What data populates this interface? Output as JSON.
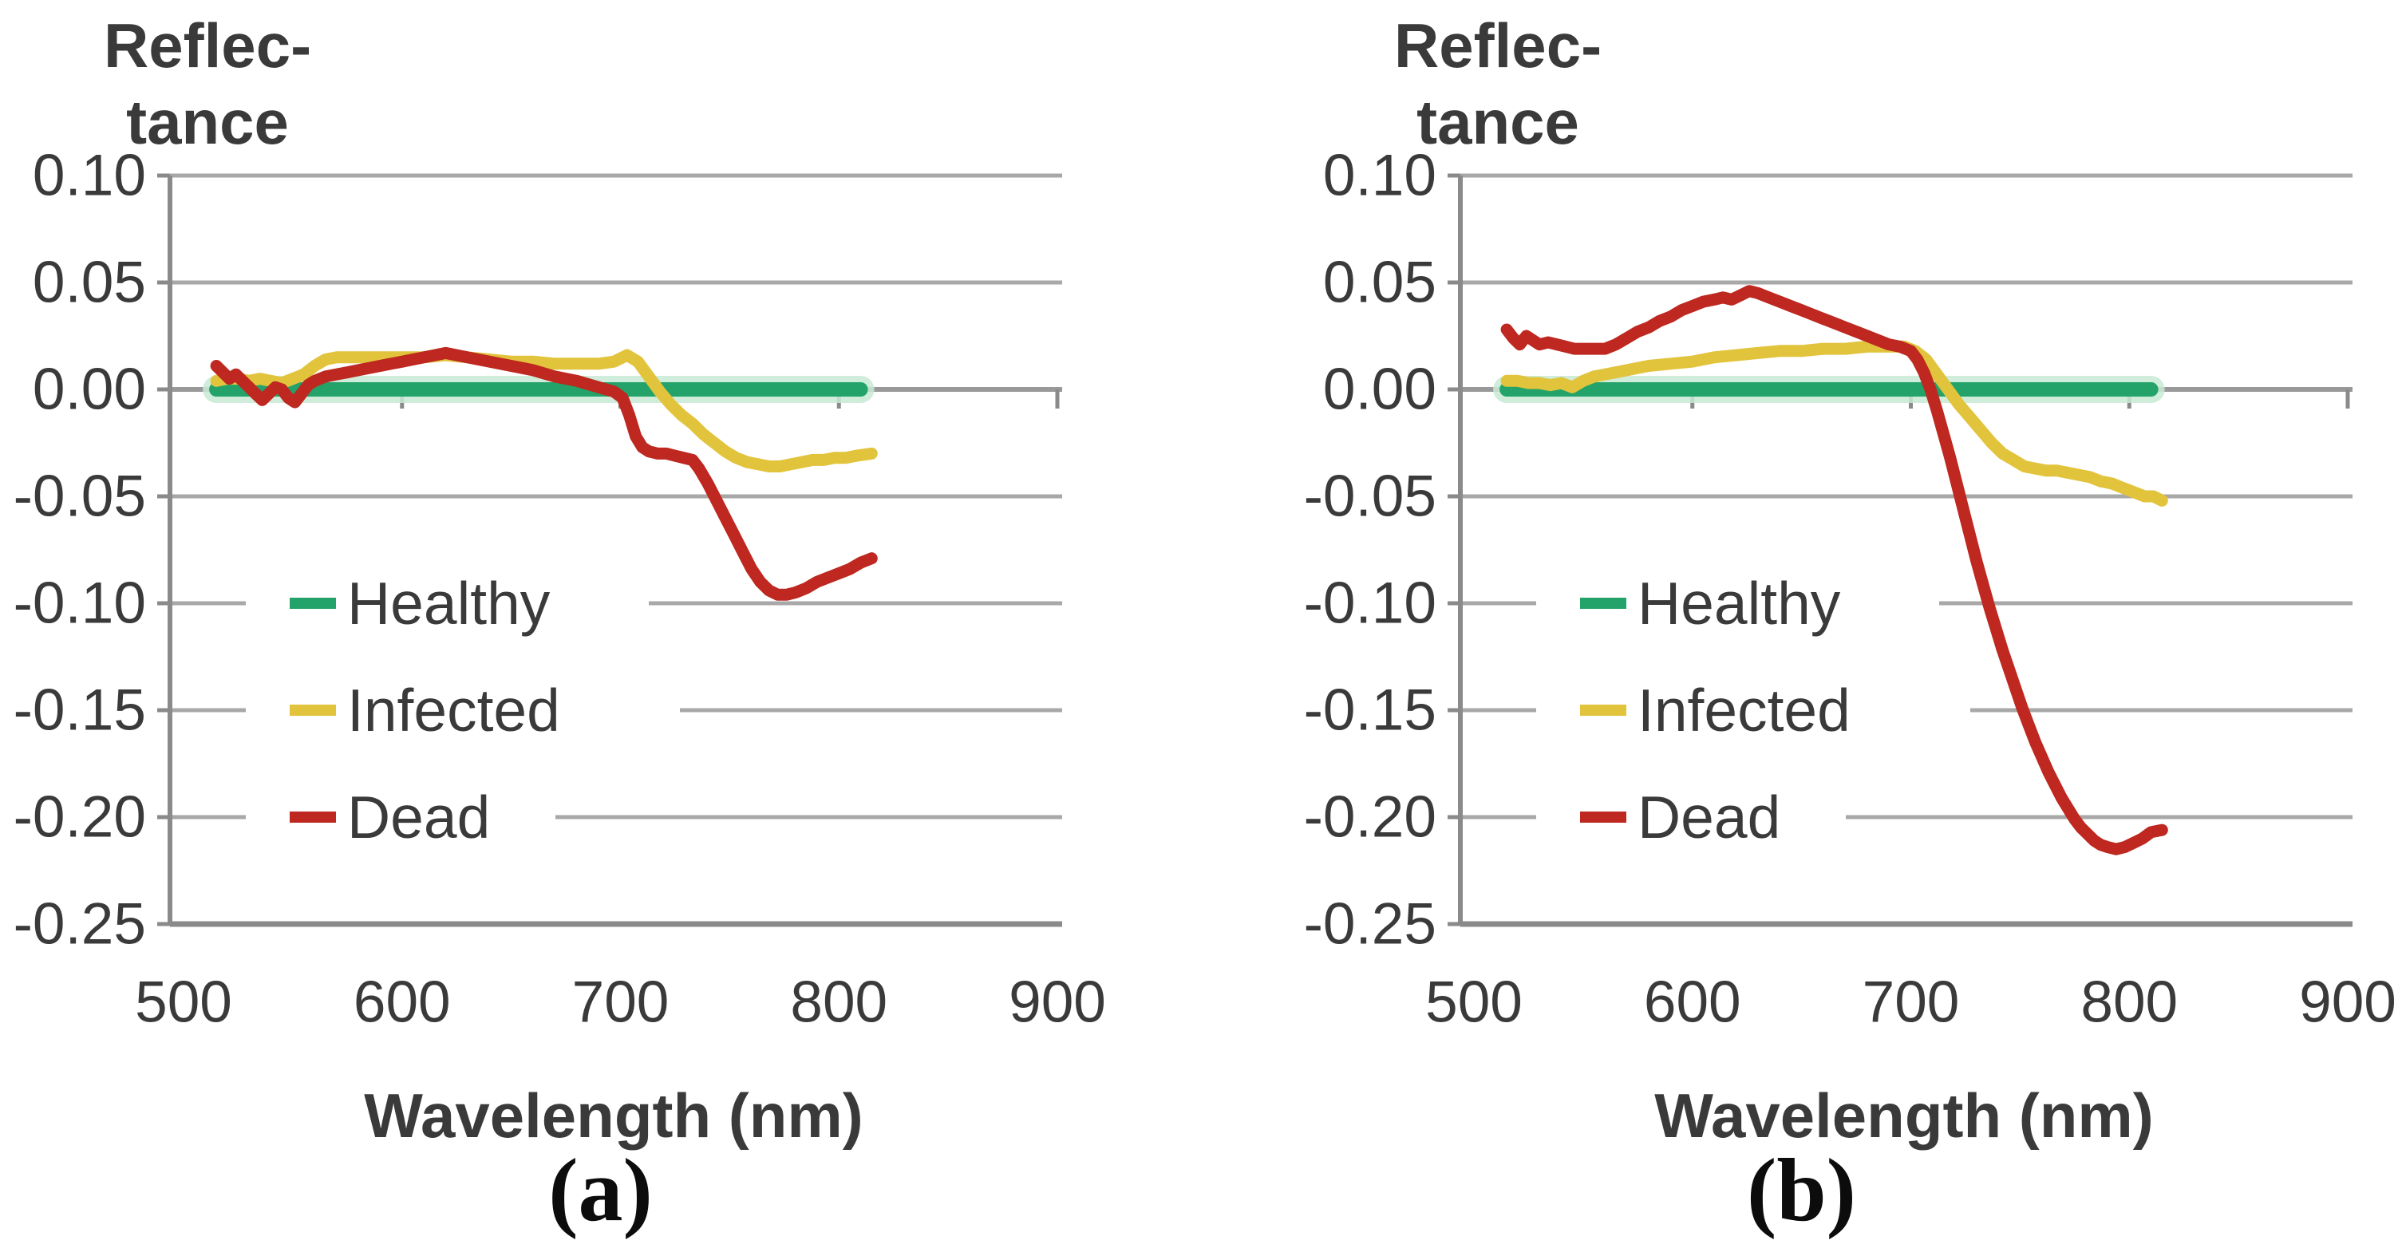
{
  "figure_captions": {
    "a": "(a)",
    "b": "(b)"
  },
  "colors": {
    "healthy": "#23A36A",
    "healthy_halo": "#C8EAD6",
    "infected": "#E2C43C",
    "dead": "#BE2820",
    "gridline": "#A8A8A8",
    "axis": "#8A8A8A",
    "zero_line": "#999999",
    "label_text": "#3A3A3A",
    "legend_text": "#333333"
  },
  "chart_data": [
    {
      "id": "a",
      "type": "line",
      "caption": "(a)",
      "ylabel_line1": "Reflec-",
      "ylabel_line2": "tance",
      "xlabel": "Wavelength (nm)",
      "x_ticks": [
        "500",
        "600",
        "700",
        "800",
        "900"
      ],
      "y_ticks": [
        "0.10",
        "0.05",
        "0.00",
        "-0.05",
        "-0.10",
        "-0.15",
        "-0.20",
        "-0.25"
      ],
      "xlim": [
        500,
        900
      ],
      "ylim": [
        -0.25,
        0.1
      ],
      "grid": "horizontal",
      "legend": {
        "position": "inside-left",
        "entries": [
          {
            "label": "Healthy",
            "color": "#23A36A",
            "row_value": -0.1
          },
          {
            "label": "Infected",
            "color": "#E2C43C",
            "row_value": -0.15
          },
          {
            "label": "Dead",
            "color": "#BE2820",
            "row_value": -0.2
          }
        ]
      },
      "series": [
        {
          "name": "Healthy",
          "color": "#23A36A",
          "points": [
            [
              515,
              0
            ],
            [
              810,
              0
            ]
          ]
        },
        {
          "name": "Infected",
          "color": "#E2C43C",
          "points": [
            [
              515,
              0.004
            ],
            [
              520,
              0.005
            ],
            [
              525,
              0.005
            ],
            [
              530,
              0.004
            ],
            [
              535,
              0.005
            ],
            [
              540,
              0.004
            ],
            [
              545,
              0.003
            ],
            [
              550,
              0.005
            ],
            [
              555,
              0.007
            ],
            [
              560,
              0.011
            ],
            [
              565,
              0.014
            ],
            [
              570,
              0.015
            ],
            [
              580,
              0.015
            ],
            [
              590,
              0.015
            ],
            [
              600,
              0.015
            ],
            [
              610,
              0.015
            ],
            [
              620,
              0.016
            ],
            [
              630,
              0.015
            ],
            [
              640,
              0.014
            ],
            [
              650,
              0.013
            ],
            [
              660,
              0.013
            ],
            [
              670,
              0.012
            ],
            [
              680,
              0.012
            ],
            [
              690,
              0.012
            ],
            [
              697,
              0.013
            ],
            [
              703,
              0.016
            ],
            [
              708,
              0.013
            ],
            [
              713,
              0.006
            ],
            [
              718,
              -0.001
            ],
            [
              723,
              -0.007
            ],
            [
              728,
              -0.012
            ],
            [
              733,
              -0.016
            ],
            [
              738,
              -0.021
            ],
            [
              743,
              -0.025
            ],
            [
              748,
              -0.029
            ],
            [
              753,
              -0.032
            ],
            [
              758,
              -0.034
            ],
            [
              763,
              -0.035
            ],
            [
              768,
              -0.036
            ],
            [
              773,
              -0.036
            ],
            [
              778,
              -0.035
            ],
            [
              783,
              -0.034
            ],
            [
              788,
              -0.033
            ],
            [
              793,
              -0.033
            ],
            [
              798,
              -0.032
            ],
            [
              803,
              -0.032
            ],
            [
              808,
              -0.031
            ],
            [
              815,
              -0.03
            ]
          ]
        },
        {
          "name": "Dead",
          "color": "#BE2820",
          "points": [
            [
              515,
              0.011
            ],
            [
              518,
              0.008
            ],
            [
              521,
              0.005
            ],
            [
              524,
              0.007
            ],
            [
              527,
              0.004
            ],
            [
              530,
              0.001
            ],
            [
              533,
              -0.002
            ],
            [
              536,
              -0.005
            ],
            [
              539,
              -0.002
            ],
            [
              542,
              0.001
            ],
            [
              545,
              0.0
            ],
            [
              548,
              -0.004
            ],
            [
              551,
              -0.006
            ],
            [
              554,
              -0.002
            ],
            [
              557,
              0.002
            ],
            [
              560,
              0.004
            ],
            [
              565,
              0.006
            ],
            [
              570,
              0.007
            ],
            [
              575,
              0.008
            ],
            [
              580,
              0.009
            ],
            [
              585,
              0.01
            ],
            [
              590,
              0.011
            ],
            [
              595,
              0.012
            ],
            [
              600,
              0.013
            ],
            [
              605,
              0.014
            ],
            [
              610,
              0.015
            ],
            [
              615,
              0.016
            ],
            [
              620,
              0.017
            ],
            [
              625,
              0.016
            ],
            [
              630,
              0.015
            ],
            [
              640,
              0.013
            ],
            [
              650,
              0.011
            ],
            [
              660,
              0.009
            ],
            [
              670,
              0.006
            ],
            [
              680,
              0.004
            ],
            [
              690,
              0.001
            ],
            [
              697,
              -0.001
            ],
            [
              701,
              -0.004
            ],
            [
              704,
              -0.012
            ],
            [
              707,
              -0.022
            ],
            [
              710,
              -0.027
            ],
            [
              713,
              -0.029
            ],
            [
              717,
              -0.03
            ],
            [
              721,
              -0.03
            ],
            [
              725,
              -0.031
            ],
            [
              729,
              -0.032
            ],
            [
              733,
              -0.033
            ],
            [
              736,
              -0.037
            ],
            [
              740,
              -0.044
            ],
            [
              744,
              -0.052
            ],
            [
              748,
              -0.06
            ],
            [
              752,
              -0.068
            ],
            [
              756,
              -0.076
            ],
            [
              760,
              -0.084
            ],
            [
              764,
              -0.09
            ],
            [
              768,
              -0.094
            ],
            [
              772,
              -0.096
            ],
            [
              776,
              -0.096
            ],
            [
              780,
              -0.095
            ],
            [
              785,
              -0.093
            ],
            [
              790,
              -0.09
            ],
            [
              795,
              -0.088
            ],
            [
              800,
              -0.086
            ],
            [
              805,
              -0.084
            ],
            [
              810,
              -0.081
            ],
            [
              815,
              -0.079
            ]
          ]
        }
      ]
    },
    {
      "id": "b",
      "type": "line",
      "caption": "(b)",
      "ylabel_line1": "Reflec-",
      "ylabel_line2": "tance",
      "xlabel": "Wavelength (nm)",
      "x_ticks": [
        "500",
        "600",
        "700",
        "800",
        "900"
      ],
      "y_ticks": [
        "0.10",
        "0.05",
        "0.00",
        "-0.05",
        "-0.10",
        "-0.15",
        "-0.20",
        "-0.25"
      ],
      "xlim": [
        500,
        900
      ],
      "ylim": [
        -0.25,
        0.1
      ],
      "grid": "horizontal",
      "legend": {
        "position": "inside-left",
        "entries": [
          {
            "label": "Healthy",
            "color": "#23A36A",
            "row_value": -0.1
          },
          {
            "label": "Infected",
            "color": "#E2C43C",
            "row_value": -0.15
          },
          {
            "label": "Dead",
            "color": "#BE2820",
            "row_value": -0.2
          }
        ]
      },
      "series": [
        {
          "name": "Healthy",
          "color": "#23A36A",
          "points": [
            [
              515,
              0
            ],
            [
              810,
              0
            ]
          ]
        },
        {
          "name": "Infected",
          "color": "#E2C43C",
          "points": [
            [
              515,
              0.004
            ],
            [
              520,
              0.004
            ],
            [
              525,
              0.003
            ],
            [
              530,
              0.003
            ],
            [
              535,
              0.002
            ],
            [
              540,
              0.003
            ],
            [
              545,
              0.001
            ],
            [
              550,
              0.004
            ],
            [
              555,
              0.006
            ],
            [
              560,
              0.007
            ],
            [
              565,
              0.008
            ],
            [
              570,
              0.009
            ],
            [
              575,
              0.01
            ],
            [
              580,
              0.011
            ],
            [
              590,
              0.012
            ],
            [
              600,
              0.013
            ],
            [
              610,
              0.015
            ],
            [
              620,
              0.016
            ],
            [
              630,
              0.017
            ],
            [
              640,
              0.018
            ],
            [
              650,
              0.018
            ],
            [
              660,
              0.019
            ],
            [
              670,
              0.019
            ],
            [
              680,
              0.02
            ],
            [
              690,
              0.02
            ],
            [
              697,
              0.02
            ],
            [
              702,
              0.018
            ],
            [
              707,
              0.014
            ],
            [
              712,
              0.007
            ],
            [
              717,
              0.0
            ],
            [
              722,
              -0.007
            ],
            [
              727,
              -0.013
            ],
            [
              732,
              -0.019
            ],
            [
              737,
              -0.025
            ],
            [
              742,
              -0.03
            ],
            [
              747,
              -0.033
            ],
            [
              752,
              -0.036
            ],
            [
              757,
              -0.037
            ],
            [
              762,
              -0.038
            ],
            [
              767,
              -0.038
            ],
            [
              772,
              -0.039
            ],
            [
              777,
              -0.04
            ],
            [
              782,
              -0.041
            ],
            [
              787,
              -0.043
            ],
            [
              792,
              -0.044
            ],
            [
              797,
              -0.046
            ],
            [
              802,
              -0.048
            ],
            [
              807,
              -0.05
            ],
            [
              811,
              -0.05
            ],
            [
              815,
              -0.052
            ]
          ]
        },
        {
          "name": "Dead",
          "color": "#BE2820",
          "points": [
            [
              515,
              0.028
            ],
            [
              518,
              0.024
            ],
            [
              521,
              0.021
            ],
            [
              524,
              0.025
            ],
            [
              527,
              0.023
            ],
            [
              530,
              0.021
            ],
            [
              534,
              0.022
            ],
            [
              538,
              0.021
            ],
            [
              542,
              0.02
            ],
            [
              546,
              0.019
            ],
            [
              550,
              0.019
            ],
            [
              555,
              0.019
            ],
            [
              560,
              0.019
            ],
            [
              565,
              0.021
            ],
            [
              570,
              0.024
            ],
            [
              575,
              0.027
            ],
            [
              580,
              0.029
            ],
            [
              585,
              0.032
            ],
            [
              590,
              0.034
            ],
            [
              595,
              0.037
            ],
            [
              600,
              0.039
            ],
            [
              605,
              0.041
            ],
            [
              610,
              0.042
            ],
            [
              614,
              0.043
            ],
            [
              618,
              0.042
            ],
            [
              622,
              0.044
            ],
            [
              626,
              0.046
            ],
            [
              630,
              0.045
            ],
            [
              635,
              0.043
            ],
            [
              640,
              0.041
            ],
            [
              645,
              0.039
            ],
            [
              650,
              0.037
            ],
            [
              655,
              0.035
            ],
            [
              660,
              0.033
            ],
            [
              665,
              0.031
            ],
            [
              670,
              0.029
            ],
            [
              675,
              0.027
            ],
            [
              680,
              0.025
            ],
            [
              685,
              0.023
            ],
            [
              690,
              0.021
            ],
            [
              695,
              0.02
            ],
            [
              700,
              0.018
            ],
            [
              703,
              0.014
            ],
            [
              706,
              0.008
            ],
            [
              709,
              0.0
            ],
            [
              712,
              -0.01
            ],
            [
              715,
              -0.021
            ],
            [
              718,
              -0.032
            ],
            [
              721,
              -0.044
            ],
            [
              724,
              -0.056
            ],
            [
              727,
              -0.068
            ],
            [
              730,
              -0.08
            ],
            [
              733,
              -0.091
            ],
            [
              736,
              -0.102
            ],
            [
              739,
              -0.112
            ],
            [
              742,
              -0.122
            ],
            [
              745,
              -0.131
            ],
            [
              748,
              -0.14
            ],
            [
              751,
              -0.149
            ],
            [
              754,
              -0.157
            ],
            [
              757,
              -0.165
            ],
            [
              760,
              -0.172
            ],
            [
              763,
              -0.179
            ],
            [
              766,
              -0.185
            ],
            [
              769,
              -0.191
            ],
            [
              772,
              -0.196
            ],
            [
              775,
              -0.201
            ],
            [
              778,
              -0.205
            ],
            [
              781,
              -0.208
            ],
            [
              784,
              -0.211
            ],
            [
              787,
              -0.213
            ],
            [
              790,
              -0.214
            ],
            [
              794,
              -0.215
            ],
            [
              798,
              -0.214
            ],
            [
              802,
              -0.212
            ],
            [
              806,
              -0.21
            ],
            [
              810,
              -0.207
            ],
            [
              815,
              -0.206
            ]
          ]
        }
      ]
    }
  ]
}
